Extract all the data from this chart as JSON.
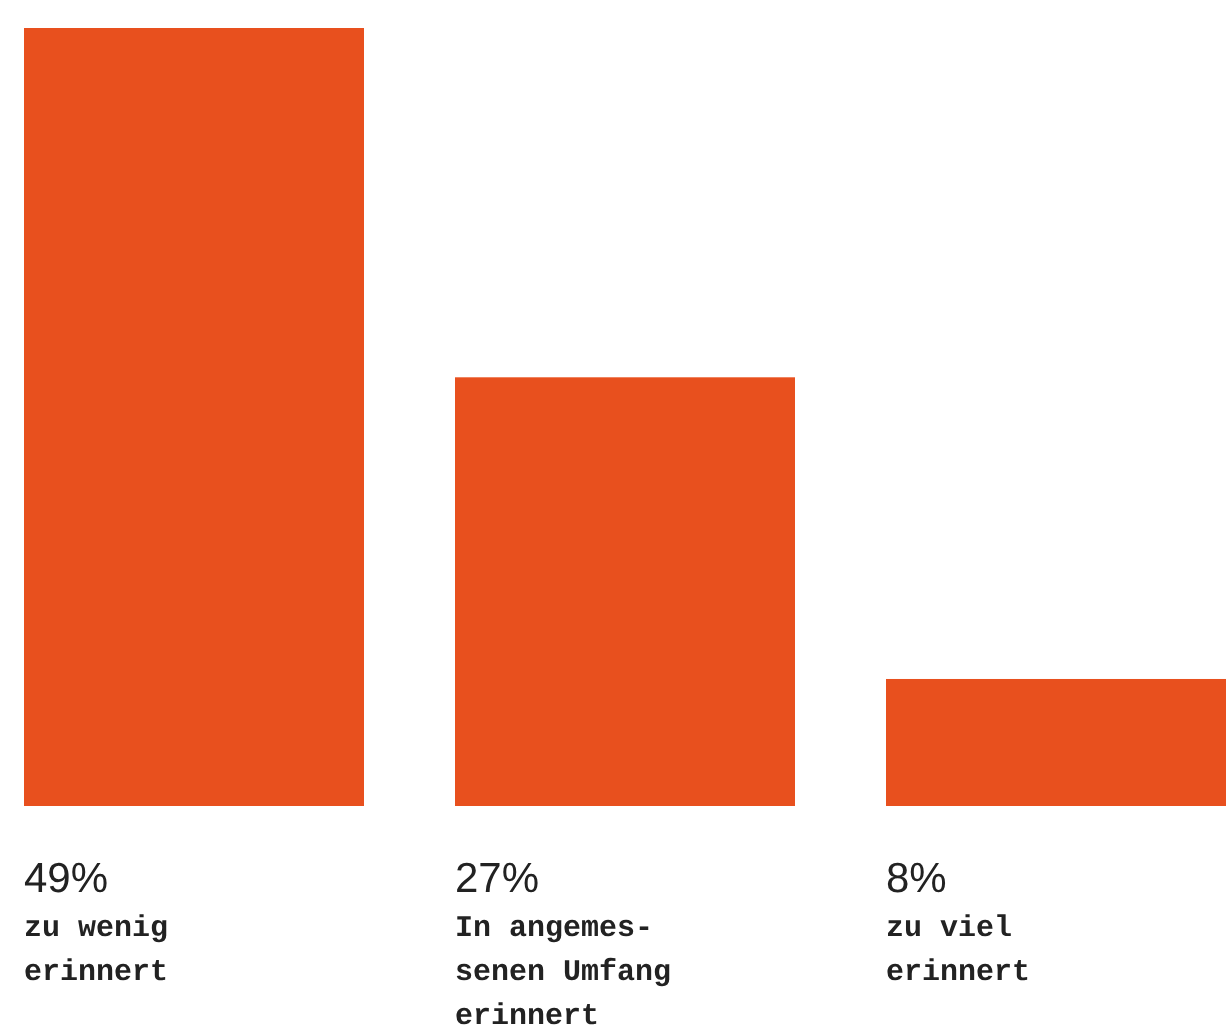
{
  "chart_data": {
    "type": "bar",
    "categories": [
      "zu wenig\nerinnert",
      "In angemes-\nsenen Umfang\nerinnert",
      "zu viel\nerinnert"
    ],
    "values": [
      49,
      27,
      8
    ],
    "value_labels": [
      "49%",
      "27%",
      "8%"
    ],
    "color": "#e8501e"
  }
}
